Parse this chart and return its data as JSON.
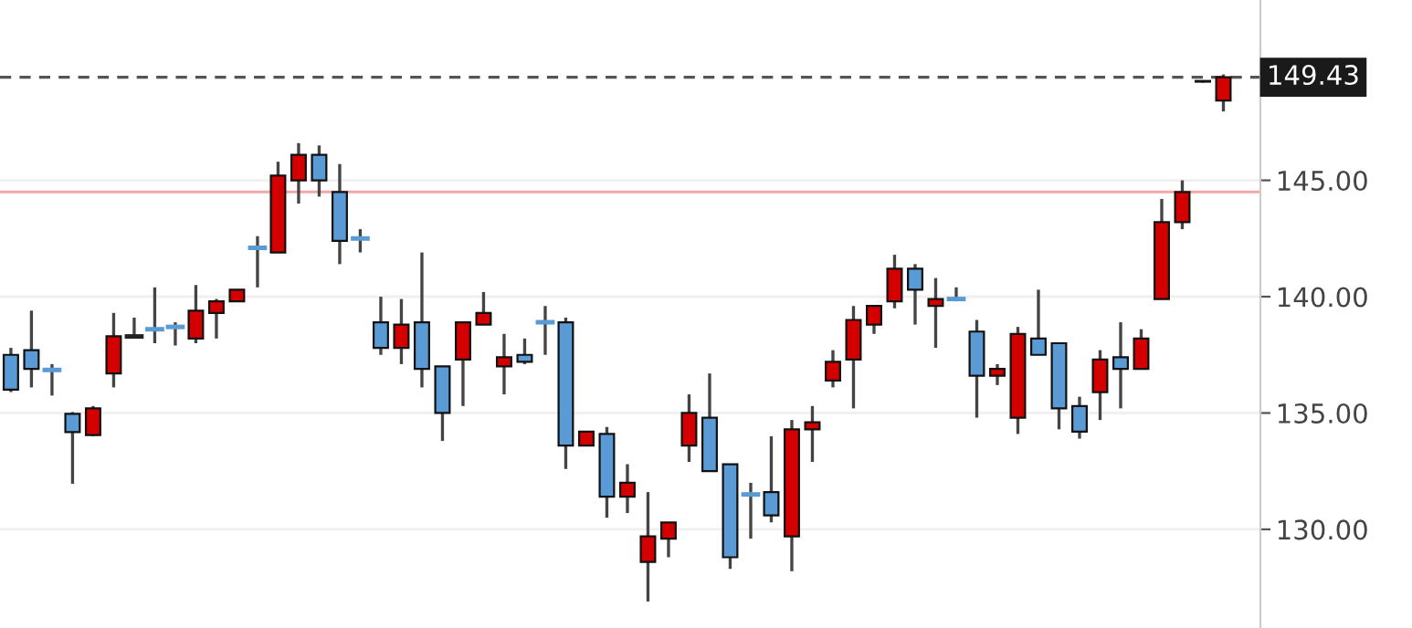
{
  "chart_data": {
    "type": "candlestick",
    "categories": [
      null,
      null,
      null,
      null,
      null,
      null,
      null,
      null,
      null,
      null,
      null,
      null,
      null,
      null,
      null,
      null,
      null,
      null,
      null,
      null,
      null,
      null,
      null,
      null,
      null,
      null,
      null,
      null,
      null,
      null,
      null,
      null,
      null,
      null,
      null,
      null,
      null,
      null,
      null,
      null,
      null,
      null,
      null,
      null,
      null,
      null,
      null,
      null,
      null,
      null,
      null,
      null,
      null,
      null,
      null,
      null,
      null,
      null,
      null,
      null
    ],
    "ohlc": [
      [
        137.5,
        137.8,
        135.9,
        136.0
      ],
      [
        137.7,
        139.4,
        136.1,
        136.9
      ],
      [
        136.85,
        137.1,
        135.75,
        136.85
      ],
      [
        134.96,
        135.04,
        131.96,
        134.18
      ],
      [
        134.05,
        135.3,
        134.0,
        135.2
      ],
      [
        136.7,
        139.3,
        136.1,
        138.3
      ],
      [
        138.29,
        139.1,
        138.25,
        138.29
      ],
      [
        138.6,
        140.4,
        138.0,
        138.6
      ],
      [
        138.7,
        138.9,
        137.9,
        138.7
      ],
      [
        138.2,
        140.5,
        138.0,
        139.4
      ],
      [
        139.3,
        139.9,
        138.2,
        139.8
      ],
      [
        139.8,
        140.3,
        139.8,
        140.3
      ],
      [
        142.1,
        142.6,
        140.4,
        142.1
      ],
      [
        141.9,
        145.8,
        141.9,
        145.2
      ],
      [
        145.0,
        146.6,
        144.0,
        146.1
      ],
      [
        146.1,
        146.5,
        144.3,
        145.0
      ],
      [
        144.5,
        145.7,
        141.4,
        142.4
      ],
      [
        142.5,
        142.9,
        141.9,
        142.5
      ],
      [
        138.9,
        140.0,
        137.5,
        137.8
      ],
      [
        137.8,
        139.9,
        137.1,
        138.8
      ],
      [
        138.9,
        141.9,
        136.1,
        136.9
      ],
      [
        137.0,
        137.0,
        133.8,
        135.0
      ],
      [
        137.3,
        138.9,
        135.3,
        138.9
      ],
      [
        138.8,
        140.2,
        138.8,
        139.3
      ],
      [
        137.0,
        138.4,
        135.8,
        137.4
      ],
      [
        137.5,
        138.2,
        137.1,
        137.2
      ],
      [
        138.9,
        139.6,
        137.5,
        138.9
      ],
      [
        138.9,
        139.1,
        132.6,
        133.6
      ],
      [
        133.6,
        134.2,
        133.6,
        134.2
      ],
      [
        134.1,
        134.4,
        130.5,
        131.4
      ],
      [
        131.4,
        132.8,
        130.7,
        132.0
      ],
      [
        128.6,
        131.6,
        126.9,
        129.7
      ],
      [
        129.6,
        130.3,
        128.8,
        130.3
      ],
      [
        133.6,
        135.8,
        132.9,
        135.0
      ],
      [
        134.8,
        136.7,
        132.5,
        132.5
      ],
      [
        132.8,
        132.8,
        128.3,
        128.8
      ],
      [
        131.5,
        132.0,
        129.6,
        131.5
      ],
      [
        131.6,
        134.0,
        130.3,
        130.6
      ],
      [
        129.7,
        134.7,
        128.2,
        134.3
      ],
      [
        134.3,
        135.3,
        132.9,
        134.6
      ],
      [
        136.4,
        137.7,
        136.1,
        137.2
      ],
      [
        137.3,
        139.6,
        135.2,
        139.0
      ],
      [
        138.8,
        139.6,
        138.4,
        139.6
      ],
      [
        139.8,
        141.8,
        139.5,
        141.2
      ],
      [
        141.2,
        141.4,
        138.8,
        140.3
      ],
      [
        139.6,
        140.8,
        137.8,
        139.9
      ],
      [
        139.9,
        140.4,
        139.8,
        139.9
      ],
      [
        138.5,
        139.0,
        134.8,
        136.6
      ],
      [
        136.6,
        137.1,
        136.2,
        136.9
      ],
      [
        134.8,
        138.7,
        134.1,
        138.4
      ],
      [
        138.2,
        140.3,
        137.5,
        137.5
      ],
      [
        138.0,
        138.0,
        134.3,
        135.2
      ],
      [
        135.3,
        135.7,
        133.9,
        134.2
      ],
      [
        135.9,
        137.7,
        134.7,
        137.3
      ],
      [
        137.4,
        138.9,
        135.2,
        136.9
      ],
      [
        136.9,
        138.6,
        136.9,
        138.2
      ],
      [
        139.9,
        144.2,
        139.9,
        143.2
      ],
      [
        143.2,
        145.0,
        142.9,
        144.5
      ],
      [
        149.27,
        149.3,
        149.2,
        149.24
      ],
      [
        148.43,
        149.55,
        147.96,
        149.43
      ]
    ],
    "colors": [
      "#5b9bd5",
      "#5b9bd5",
      "#5b9bd5",
      "#5b9bd5",
      "#d40000",
      "#d40000",
      "#222222",
      "#5b9bd5",
      "#5b9bd5",
      "#d40000",
      "#d40000",
      "#d40000",
      "#5b9bd5",
      "#d40000",
      "#d40000",
      "#5b9bd5",
      "#5b9bd5",
      "#5b9bd5",
      "#5b9bd5",
      "#d40000",
      "#5b9bd5",
      "#5b9bd5",
      "#d40000",
      "#d40000",
      "#d40000",
      "#5b9bd5",
      "#5b9bd5",
      "#5b9bd5",
      "#d40000",
      "#5b9bd5",
      "#d40000",
      "#d40000",
      "#d40000",
      "#d40000",
      "#5b9bd5",
      "#5b9bd5",
      "#5b9bd5",
      "#5b9bd5",
      "#d40000",
      "#d40000",
      "#d40000",
      "#d40000",
      "#d40000",
      "#d40000",
      "#5b9bd5",
      "#d40000",
      "#5b9bd5",
      "#5b9bd5",
      "#d40000",
      "#d40000",
      "#5b9bd5",
      "#5b9bd5",
      "#5b9bd5",
      "#d40000",
      "#5b9bd5",
      "#d40000",
      "#d40000",
      "#d40000",
      "#222222",
      "#d40000"
    ],
    "ylim": [
      125.76,
      152.75
    ],
    "yticks": [
      {
        "value": 130,
        "label": "130.00"
      },
      {
        "value": 135,
        "label": "135.00"
      },
      {
        "value": 140,
        "label": "140.00"
      },
      {
        "value": 145,
        "label": "145.00"
      }
    ],
    "grid": "y",
    "ref_lines": [
      {
        "axis": "y",
        "value": 149.43,
        "label": "149.43",
        "color": "#555555",
        "line_style": "dashed"
      },
      {
        "axis": "y",
        "value": 144.5,
        "color": "#f4a6a6",
        "line_style": "solid"
      }
    ]
  }
}
